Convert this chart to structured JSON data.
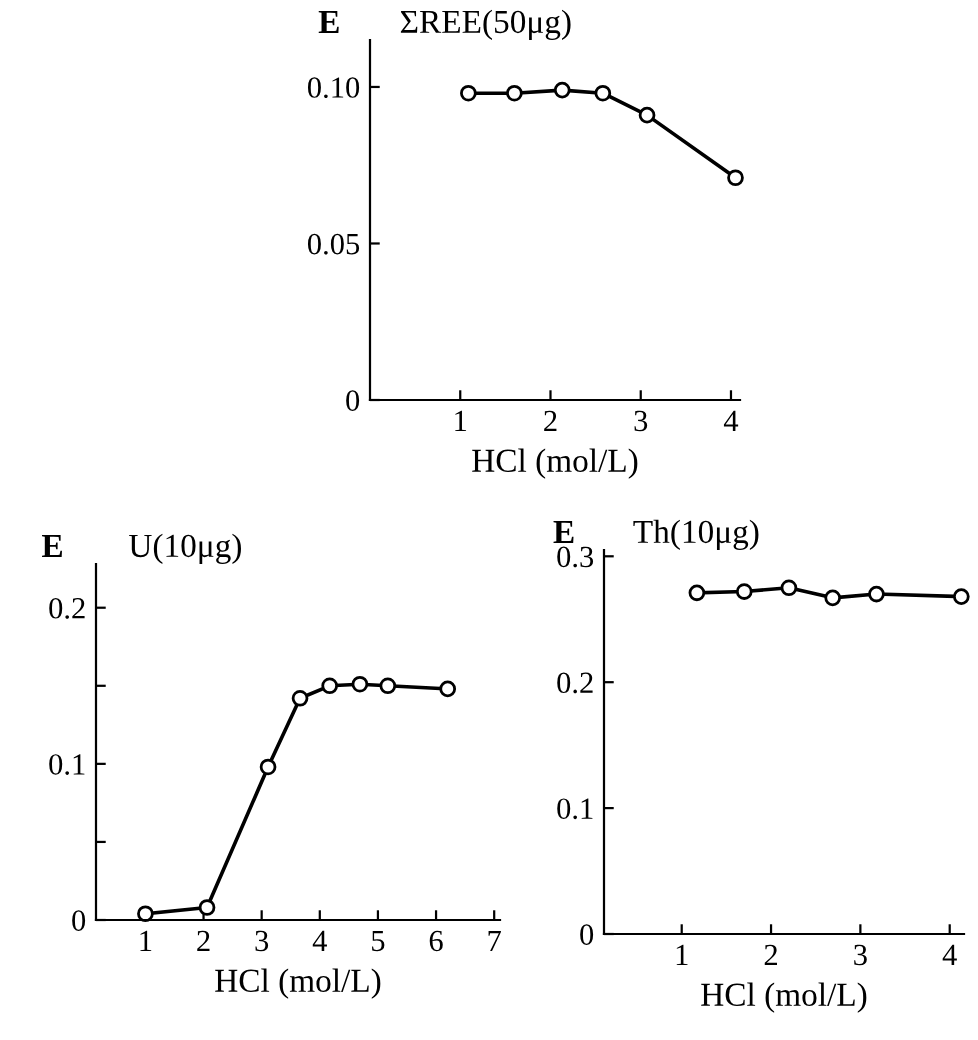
{
  "chart_data": [
    {
      "type": "line",
      "title": "ΣREE(50μg)",
      "ylabel": "E",
      "xlabel": "HCl (mol/L)",
      "marker": "circle",
      "line_style": "solid",
      "grid": false,
      "legend": false,
      "series": [
        {
          "color": "#000000",
          "x": [
            1.09,
            1.6,
            2.13,
            2.58,
            3.07,
            4.05
          ],
          "values": [
            0.098,
            0.098,
            0.099,
            0.098,
            0.091,
            0.071
          ]
        }
      ],
      "xlim": [
        0,
        4.1
      ],
      "xticks": [
        1,
        2,
        3,
        4
      ],
      "ylim": [
        0,
        0.115
      ],
      "yticks": [
        0,
        {
          "value": 0.05,
          "label": "0.05"
        },
        {
          "value": 0.1,
          "label": "0.10"
        }
      ]
    },
    {
      "type": "line",
      "title": "U(10μg)",
      "ylabel": "E",
      "xlabel": "HCl (mol/L)",
      "marker": "circle",
      "line_style": "solid",
      "grid": false,
      "legend": false,
      "series": [
        {
          "color": "#000000",
          "x": [
            1.0,
            2.06,
            3.11,
            3.66,
            4.17,
            4.69,
            5.17,
            6.2
          ],
          "values": [
            0.004,
            0.008,
            0.098,
            0.142,
            0.15,
            0.151,
            0.15,
            0.148
          ]
        }
      ],
      "xlim": [
        0.15,
        7.1
      ],
      "xticks": [
        1,
        2,
        3,
        4,
        5,
        6,
        7
      ],
      "ylim": [
        0,
        0.228
      ],
      "yticks": [
        0,
        {
          "value": 0.05,
          "label": null
        },
        0.1,
        {
          "value": 0.15,
          "label": null
        },
        0.2
      ]
    },
    {
      "type": "line",
      "title": "Th(10μg)",
      "ylabel": "E",
      "xlabel": "HCl (mol/L)",
      "marker": "circle",
      "line_style": "solid",
      "grid": false,
      "legend": false,
      "series": [
        {
          "color": "#000000",
          "x": [
            1.17,
            1.7,
            2.2,
            2.69,
            3.18,
            4.13
          ],
          "values": [
            0.271,
            0.272,
            0.275,
            0.267,
            0.27,
            0.268
          ]
        }
      ],
      "xlim": [
        0.13,
        4.16
      ],
      "xticks": [
        1,
        2,
        3,
        4
      ],
      "ylim": [
        0,
        0.305
      ],
      "yticks": [
        0,
        0.1,
        0.2,
        0.3
      ]
    }
  ]
}
